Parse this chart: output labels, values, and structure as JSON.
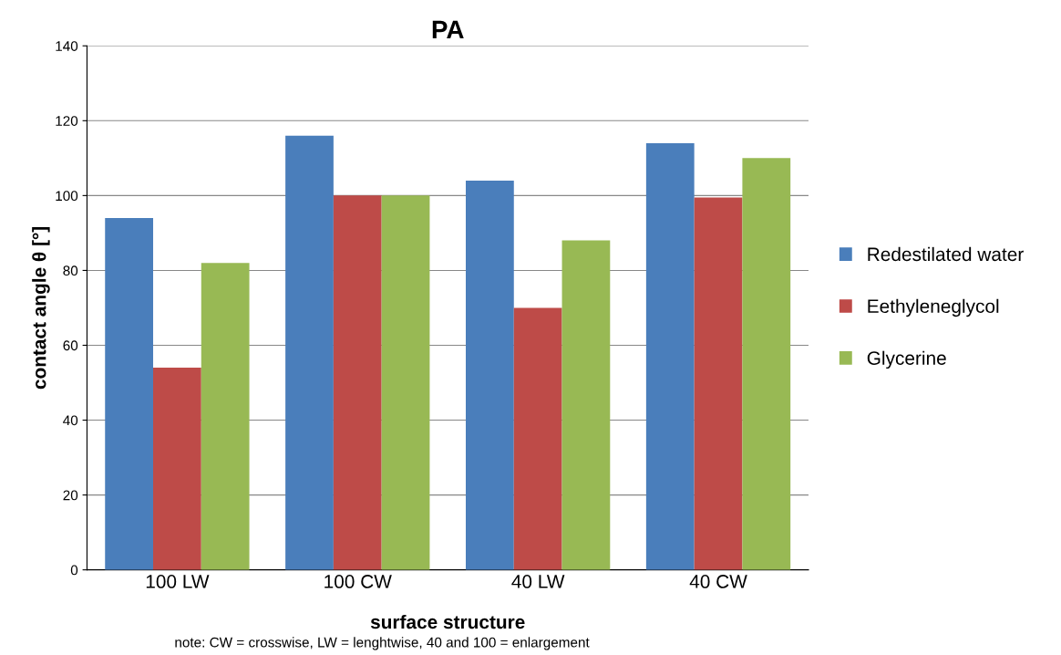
{
  "chart_data": {
    "type": "bar",
    "title": "PA",
    "xlabel": "surface structure",
    "ylabel": "contact angle θ [°]",
    "categories": [
      "100 LW",
      "100 CW",
      "40 LW",
      "40 CW"
    ],
    "series": [
      {
        "name": "Redestilated water",
        "color": "#4a7ebb",
        "values": [
          94,
          116,
          104,
          114
        ]
      },
      {
        "name": "Eethyleneglycol",
        "color": "#be4b48",
        "values": [
          54,
          100,
          70,
          99.5
        ]
      },
      {
        "name": "Glycerine",
        "color": "#98b954",
        "values": [
          82,
          100,
          88,
          110
        ]
      }
    ],
    "ylim": [
      0,
      140
    ],
    "yticks": [
      0,
      20,
      40,
      60,
      80,
      100,
      120,
      140
    ],
    "grid": "y",
    "legend": "right",
    "annotations": [
      "note: CW = crosswise, LW = lenghtwise, 40 and 100 = enlargement"
    ]
  }
}
